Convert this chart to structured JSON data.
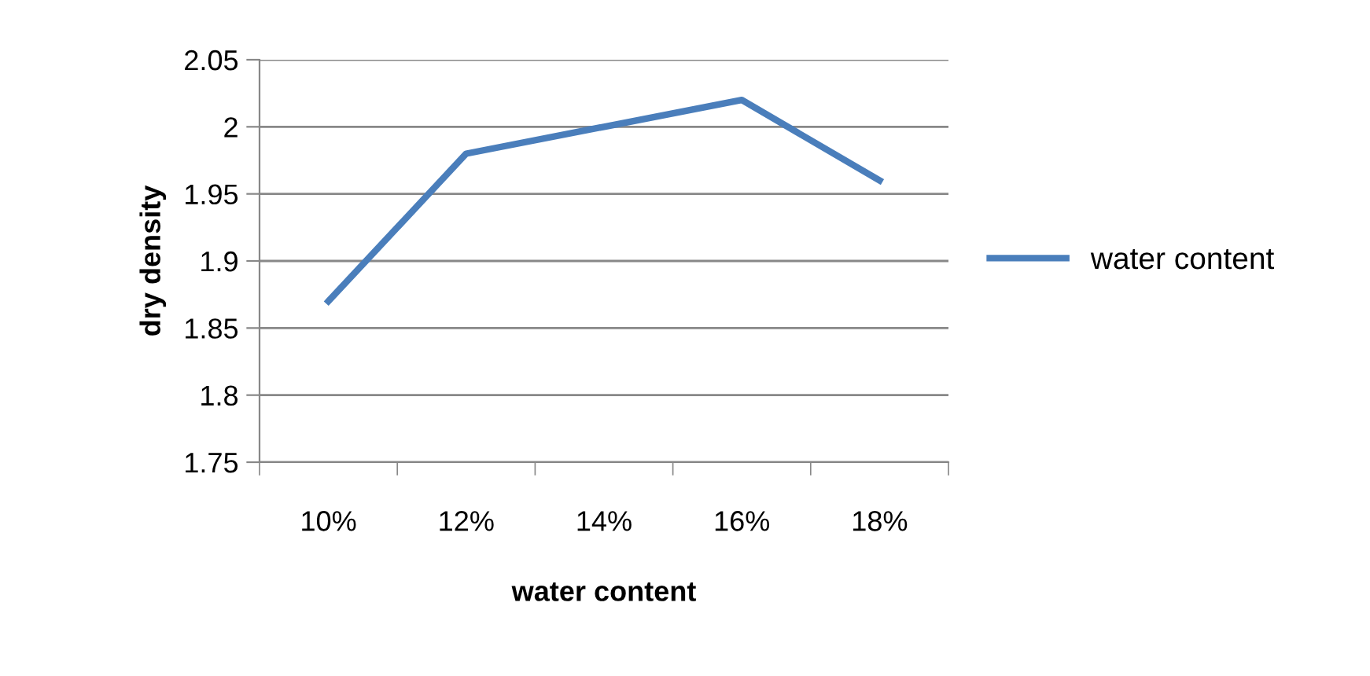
{
  "chart_data": {
    "type": "line",
    "xlabel": "water content",
    "ylabel": "dry density",
    "categories": [
      "10%",
      "12%",
      "14%",
      "16%",
      "18%"
    ],
    "series": [
      {
        "name": "water content",
        "color": "#4a7ebb",
        "values": [
          1.87,
          1.98,
          2.0,
          2.02,
          1.96
        ]
      }
    ],
    "ylim": [
      1.75,
      2.05
    ],
    "yticks": [
      1.75,
      1.8,
      1.85,
      1.9,
      1.95,
      2,
      2.05
    ],
    "grid": "y",
    "legend": "right",
    "marker": "none",
    "line_style": "solid"
  }
}
